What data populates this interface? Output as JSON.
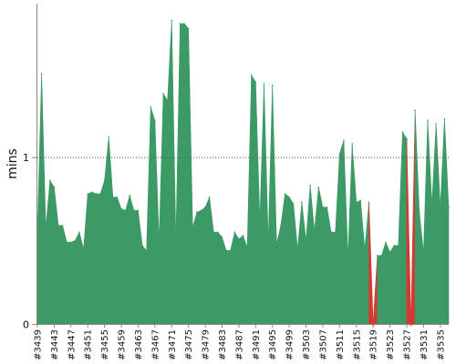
{
  "chart_data": {
    "type": "area",
    "title": "",
    "xlabel": "",
    "ylabel": "mins",
    "ylim": [
      0,
      1.92
    ],
    "yticks": [
      0,
      1
    ],
    "grid": "dotted line at 1",
    "colors": {
      "ok": "#3c9a66",
      "failed": "#d33a32"
    },
    "x_tick_labels": [
      "#3439",
      "#3443",
      "#3447",
      "#3451",
      "#3455",
      "#3459",
      "#3463",
      "#3467",
      "#3471",
      "#3475",
      "#3479",
      "#3483",
      "#3487",
      "#3491",
      "#3495",
      "#3499",
      "#3503",
      "#3507",
      "#3511",
      "#3515",
      "#3519",
      "#3523",
      "#3527",
      "#3531",
      "#3535"
    ],
    "x": [
      3439,
      3440,
      3441,
      3442,
      3443,
      3444,
      3445,
      3446,
      3447,
      3448,
      3449,
      3450,
      3451,
      3452,
      3453,
      3454,
      3455,
      3456,
      3457,
      3458,
      3459,
      3460,
      3461,
      3462,
      3463,
      3464,
      3465,
      3466,
      3467,
      3468,
      3469,
      3470,
      3471,
      3472,
      3473,
      3474,
      3475,
      3476,
      3477,
      3478,
      3479,
      3480,
      3481,
      3482,
      3483,
      3484,
      3485,
      3486,
      3487,
      3488,
      3489,
      3490,
      3491,
      3492,
      3493,
      3494,
      3495,
      3496,
      3497,
      3498,
      3499,
      3500,
      3501,
      3502,
      3503,
      3504,
      3505,
      3506,
      3507,
      3508,
      3509,
      3510,
      3511,
      3512,
      3513,
      3514,
      3515,
      3516,
      3517,
      3518,
      3519,
      3520,
      3521,
      3522,
      3523,
      3524,
      3525,
      3526,
      3527,
      3528,
      3529,
      3530,
      3531,
      3532,
      3533,
      3534,
      3535,
      3536,
      3537
    ],
    "series": [
      {
        "values": [
          0.55,
          1.5,
          0.58,
          0.86,
          0.82,
          0.59,
          0.59,
          0.49,
          0.49,
          0.5,
          0.55,
          0.45,
          0.78,
          0.79,
          0.78,
          0.78,
          0.86,
          1.12,
          0.76,
          0.76,
          0.69,
          0.68,
          0.77,
          0.68,
          0.68,
          0.47,
          0.44,
          1.3,
          1.22,
          0.5,
          1.38,
          1.34,
          1.82,
          0.5,
          1.8,
          1.8,
          1.77,
          0.58,
          0.67,
          0.68,
          0.7,
          0.76,
          0.55,
          0.55,
          0.52,
          0.44,
          0.44,
          0.55,
          0.51,
          0.53,
          0.46,
          1.49,
          1.45,
          0.62,
          1.44,
          0.5,
          1.43,
          0.48,
          0.59,
          0.78,
          0.76,
          0.72,
          0.45,
          0.73,
          0.5,
          0.83,
          0.56,
          0.82,
          0.7,
          0.7,
          0.55,
          0.55,
          1.02,
          1.1,
          0.4,
          1.08,
          0.73,
          0.74,
          0.45,
          0.73,
          0.0,
          0.41,
          0.41,
          0.49,
          0.43,
          0.47,
          0.47,
          1.15,
          1.11,
          0.0,
          1.28,
          0.67,
          0.43,
          1.22,
          0.72,
          1.2,
          0.7,
          1.23,
          0.7
        ],
        "status": [
          "ok",
          "ok",
          "ok",
          "ok",
          "ok",
          "ok",
          "ok",
          "ok",
          "ok",
          "ok",
          "ok",
          "ok",
          "ok",
          "ok",
          "ok",
          "ok",
          "ok",
          "ok",
          "ok",
          "ok",
          "ok",
          "ok",
          "ok",
          "ok",
          "ok",
          "ok",
          "ok",
          "ok",
          "ok",
          "ok",
          "ok",
          "ok",
          "ok",
          "ok",
          "ok",
          "ok",
          "ok",
          "ok",
          "ok",
          "ok",
          "ok",
          "ok",
          "ok",
          "ok",
          "ok",
          "ok",
          "ok",
          "ok",
          "ok",
          "ok",
          "ok",
          "ok",
          "ok",
          "ok",
          "ok",
          "ok",
          "ok",
          "ok",
          "ok",
          "ok",
          "ok",
          "ok",
          "ok",
          "ok",
          "ok",
          "ok",
          "ok",
          "ok",
          "ok",
          "ok",
          "ok",
          "ok",
          "ok",
          "ok",
          "ok",
          "ok",
          "ok",
          "ok",
          "ok",
          "ok",
          "failed",
          "ok",
          "ok",
          "ok",
          "ok",
          "ok",
          "ok",
          "ok",
          "ok",
          "failed",
          "ok",
          "ok",
          "ok",
          "ok",
          "ok",
          "ok",
          "ok",
          "ok",
          "ok"
        ]
      }
    ]
  }
}
